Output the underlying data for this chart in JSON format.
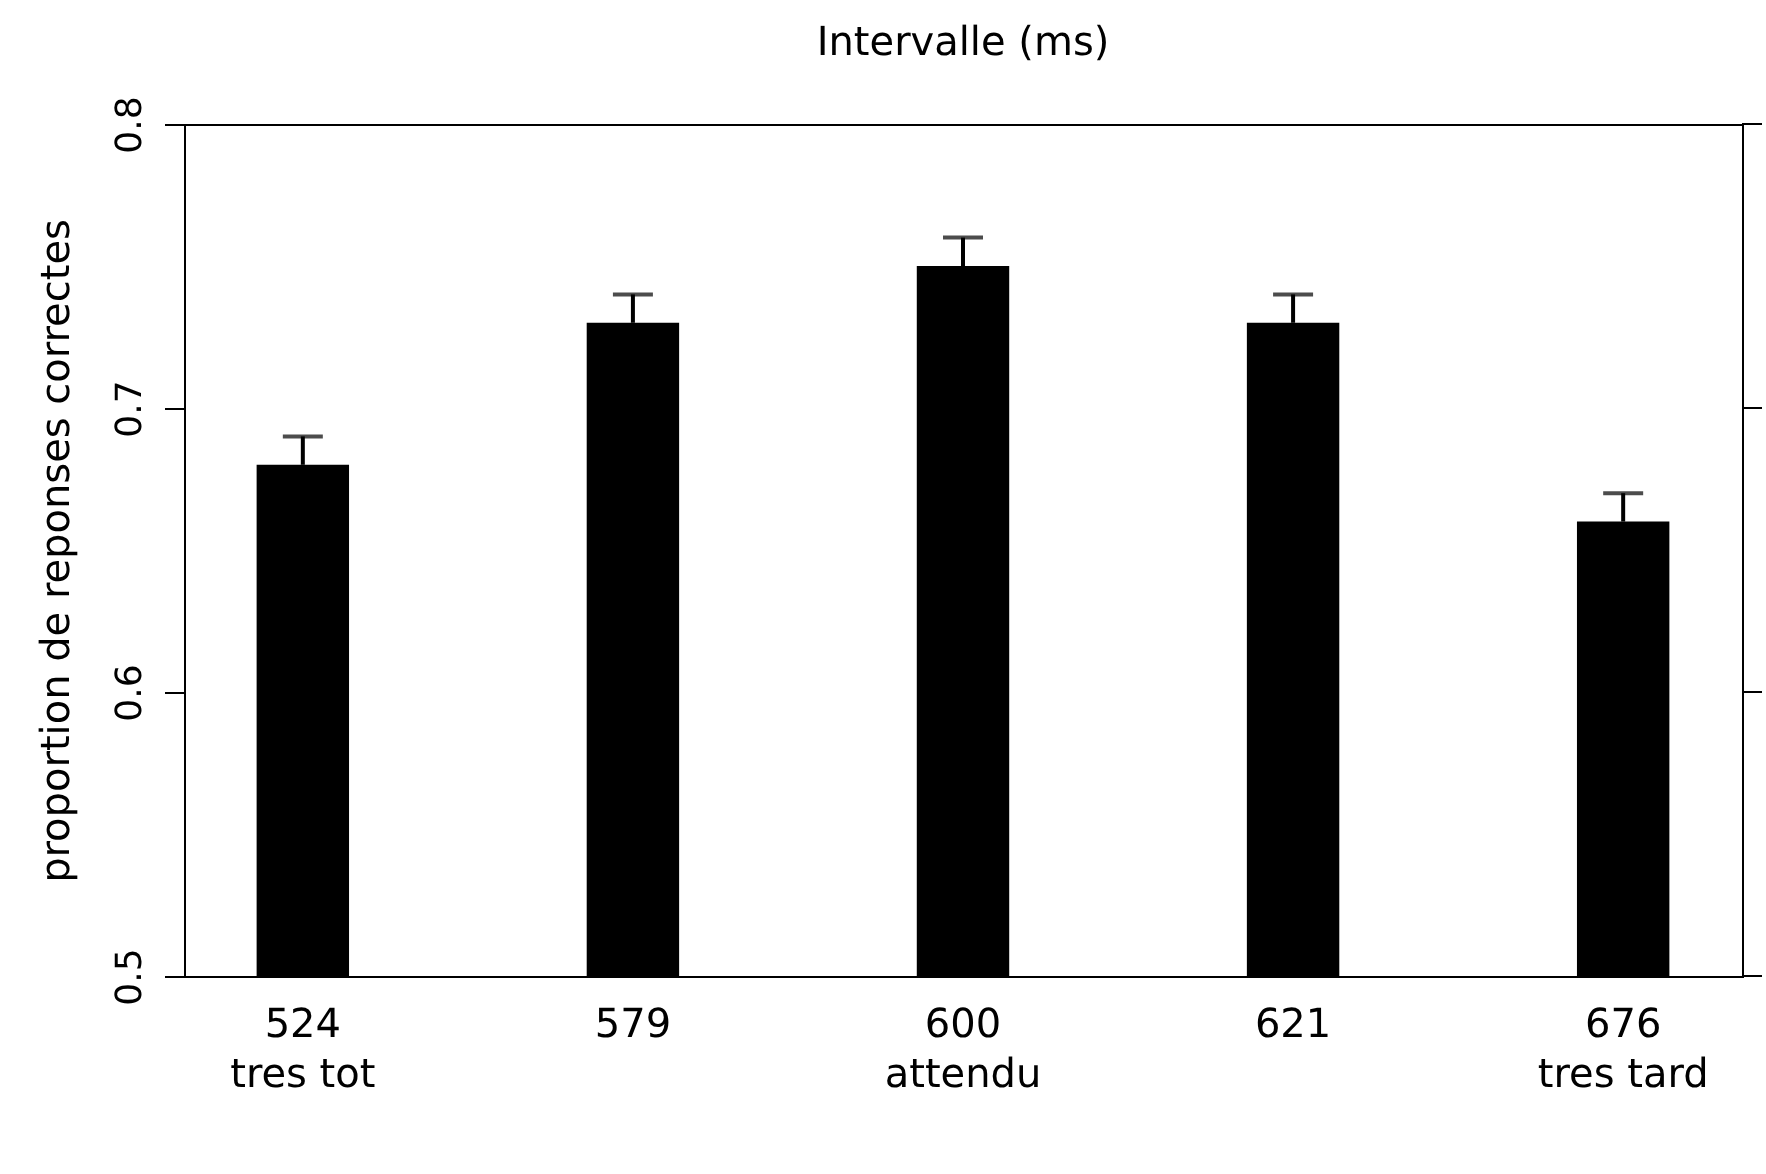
{
  "chart_data": {
    "type": "bar",
    "title": "Intervalle (ms)",
    "ylabel": "proportion de reponses correctes",
    "categories": [
      "524\ntres tot",
      "579",
      "600\nattendu",
      "621",
      "676\ntres tard"
    ],
    "values": [
      0.68,
      0.73,
      0.75,
      0.73,
      0.66
    ],
    "errors": [
      [
        0.68,
        0.69
      ],
      [
        0.73,
        0.74
      ],
      [
        0.75,
        0.76
      ],
      [
        0.73,
        0.74
      ],
      [
        0.66,
        0.67
      ]
    ],
    "color": "#000000",
    "ylim": [
      0.5,
      0.8
    ],
    "yticks": [
      0.5,
      0.6,
      0.7,
      0.8
    ],
    "grid": false
  }
}
